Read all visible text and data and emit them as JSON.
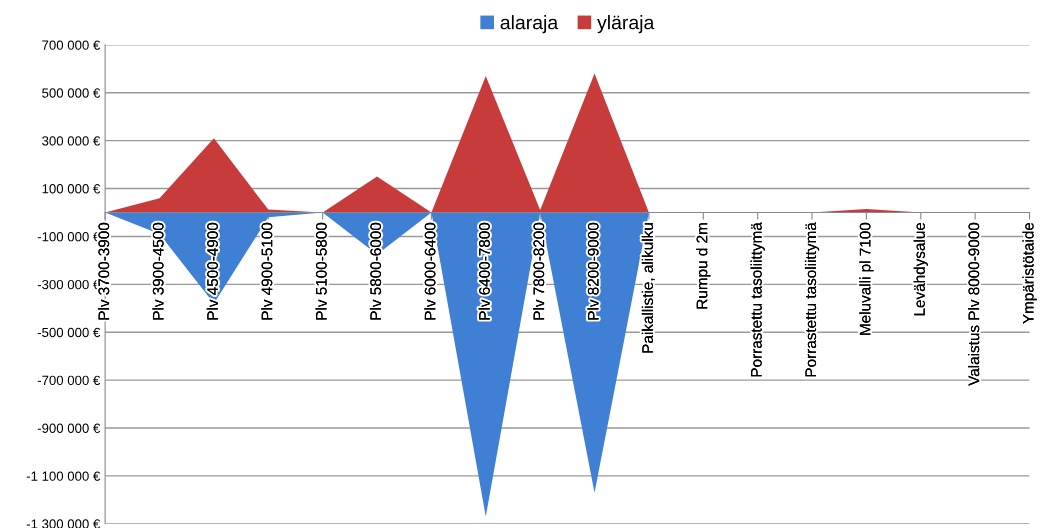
{
  "chart_data": {
    "type": "area",
    "categories": [
      "Plv 3700-3900",
      "Plv 3900-4500",
      "Plv 4500-4900",
      "Plv 4900-5100",
      "Plv 5100-5800",
      "Plv 5800-6000",
      "Plv 6000-6400",
      "Plv 6400-7800",
      "Plv 7800-8200",
      "Plv 8200-9000",
      "Paikallistie, alikulku",
      "Rumpu d 2m",
      "Porrastettu tasoliittymä",
      "Porrastettu tasoliittymä",
      "Meluvalli pl 7100",
      "Levähdysalue",
      "Valaistus Plv 8000-9000",
      "Ympäristötaide"
    ],
    "series": [
      {
        "name": "alaraja",
        "color": "#3f7fd4",
        "values": [
          0,
          -90000,
          -380000,
          -20000,
          0,
          -175000,
          0,
          -1270000,
          0,
          -1170000,
          0,
          0,
          0,
          0,
          0,
          0,
          0,
          0
        ]
      },
      {
        "name": "yläraja",
        "color": "#c83b3b",
        "values": [
          0,
          60000,
          310000,
          12000,
          0,
          150000,
          0,
          570000,
          10000,
          580000,
          0,
          0,
          0,
          0,
          15000,
          0,
          0,
          0
        ]
      }
    ],
    "ylim": [
      -1300000,
      700000
    ],
    "yticks": [
      {
        "value": 700000,
        "label": "700 000 €"
      },
      {
        "value": 500000,
        "label": "500 000 €"
      },
      {
        "value": 300000,
        "label": "300 000 €"
      },
      {
        "value": 100000,
        "label": "100 000 €"
      },
      {
        "value": -100000,
        "label": "-100 000 €"
      },
      {
        "value": -300000,
        "label": "-300 000 €"
      },
      {
        "value": -500000,
        "label": "-500 000 €"
      },
      {
        "value": -700000,
        "label": "-700 000 €"
      },
      {
        "value": -900000,
        "label": "-900 000 €"
      },
      {
        "value": -1100000,
        "label": "-1 100 000 €"
      },
      {
        "value": -1300000,
        "label": "-1 300 000 €"
      }
    ],
    "grid": "y",
    "legend": "top"
  }
}
